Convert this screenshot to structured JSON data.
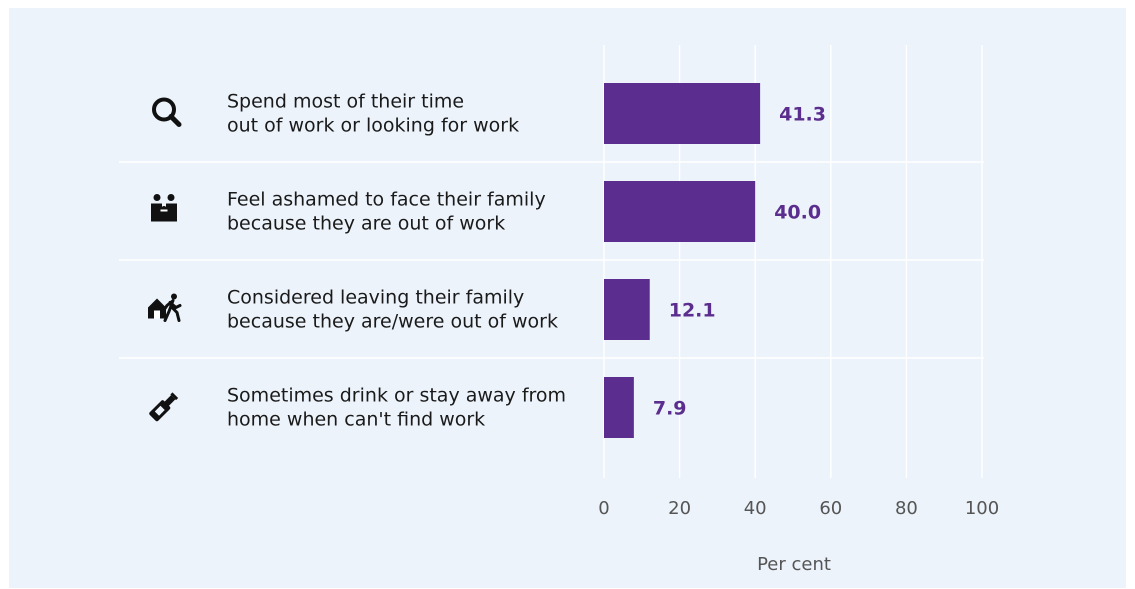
{
  "colors": {
    "bar": "#5b2d8e",
    "background": "#ecf3fb",
    "grid": "#ffffff",
    "icon": "#111111"
  },
  "chart_data": {
    "type": "bar",
    "orientation": "horizontal",
    "categories": [
      {
        "icon": "search-icon",
        "lines": [
          "Spend most of their time",
          "out of work or looking for work"
        ]
      },
      {
        "icon": "family-icon",
        "lines": [
          "Feel ashamed to face their family",
          "because they are out of work"
        ]
      },
      {
        "icon": "leaving-home-icon",
        "lines": [
          "Considered leaving their family",
          "because they are/were out of work"
        ]
      },
      {
        "icon": "bottle-icon",
        "lines": [
          "Sometimes drink or stay away from",
          "home when can't find work"
        ]
      }
    ],
    "values": [
      41.3,
      40.0,
      12.1,
      7.9
    ],
    "value_labels": [
      "41.3",
      "40.0",
      "12.1",
      "7.9"
    ],
    "xlim": [
      0,
      100
    ],
    "xticks": [
      0,
      20,
      40,
      60,
      80,
      100
    ],
    "xtick_labels": [
      "0",
      "20",
      "40",
      "60",
      "80",
      "100"
    ],
    "xlabel": "Per cent",
    "grid": true
  }
}
